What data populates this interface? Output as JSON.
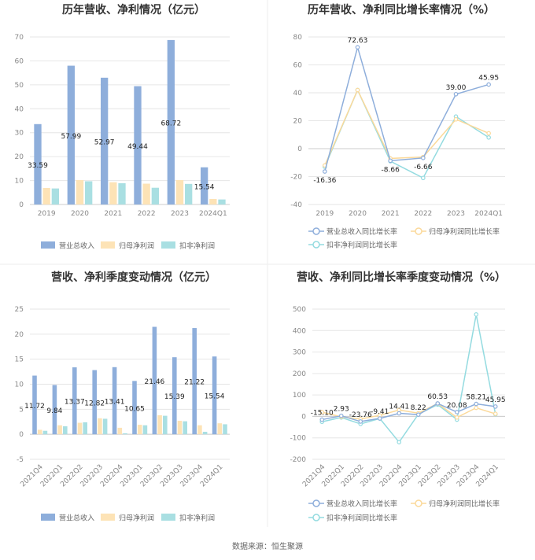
{
  "source": "数据来源：恒生聚源",
  "colors": {
    "revenue_bar": "#8eaedb",
    "netprofit_bar": "#fde3b6",
    "deducted_bar": "#a9dfe2",
    "revenue_line": "#8eaedb",
    "netprofit_line": "#fbd99a",
    "deducted_line": "#94dbe0",
    "grid": "#e6e6e6",
    "axis": "#cccccc"
  },
  "chart_data": [
    {
      "type": "bar",
      "title": "历年营收、净利情况（亿元）",
      "categories": [
        "2019",
        "2020",
        "2021",
        "2022",
        "2023",
        "2024Q1"
      ],
      "ylim": [
        0,
        70
      ],
      "yticks": [
        0,
        10,
        20,
        30,
        40,
        50,
        60,
        70
      ],
      "series": [
        {
          "name": "营业总收入",
          "values": [
            33.59,
            57.99,
            52.97,
            49.44,
            68.72,
            15.54
          ],
          "labels": [
            "33.59",
            "57.99",
            "52.97",
            "49.44",
            "68.72",
            "15.54"
          ]
        },
        {
          "name": "归母净利润",
          "values": [
            6.9,
            10.2,
            9.3,
            8.7,
            10.2,
            2.3
          ]
        },
        {
          "name": "扣非净利润",
          "values": [
            6.7,
            9.7,
            8.9,
            7.0,
            8.6,
            2.1
          ]
        }
      ],
      "grid": true,
      "legend": "bottom"
    },
    {
      "type": "line",
      "title": "历年营收、净利同比增长率情况（%）",
      "categories": [
        "2019",
        "2020",
        "2021",
        "2022",
        "2023",
        "2024Q1"
      ],
      "ylim": [
        -40,
        80
      ],
      "yticks": [
        -40,
        -20,
        0,
        20,
        40,
        60,
        80
      ],
      "series": [
        {
          "name": "营业总收入同比增长率",
          "values": [
            -16.36,
            72.63,
            -8.66,
            -6.66,
            39.0,
            45.95
          ],
          "labels": [
            "-16.36",
            "72.63",
            "-8.66",
            "-6.66",
            "39.00",
            "45.95"
          ]
        },
        {
          "name": "归母净利润同比增长率",
          "values": [
            -12,
            42,
            -7,
            -6,
            21,
            11
          ]
        },
        {
          "name": "扣非净利润同比增长率",
          "values": [
            -13,
            42,
            -9,
            -21,
            23,
            8
          ]
        }
      ],
      "grid": true,
      "legend": "bottom"
    },
    {
      "type": "bar",
      "title": "营收、净利季度变动情况（亿元）",
      "categories": [
        "2021Q4",
        "2022Q1",
        "2022Q2",
        "2022Q3",
        "2022Q4",
        "2023Q1",
        "2023Q2",
        "2023Q3",
        "2023Q4",
        "2024Q1"
      ],
      "ylim": [
        -5,
        25
      ],
      "yticks": [
        -5,
        0,
        5,
        10,
        15,
        20,
        25
      ],
      "series": [
        {
          "name": "营业总收入",
          "values": [
            11.72,
            9.84,
            13.37,
            12.82,
            13.41,
            10.65,
            21.46,
            15.39,
            21.22,
            15.54
          ],
          "labels": [
            "11.72",
            "9.84",
            "13.37",
            "12.82",
            "13.41",
            "10.65",
            "21.46",
            "15.39",
            "21.22",
            "15.54"
          ]
        },
        {
          "name": "归母净利润",
          "values": [
            0.9,
            1.8,
            2.3,
            3.2,
            1.3,
            1.9,
            3.8,
            2.7,
            1.8,
            2.2
          ]
        },
        {
          "name": "扣非净利润",
          "values": [
            0.7,
            1.6,
            2.4,
            3.1,
            0.2,
            1.8,
            3.7,
            2.6,
            0.5,
            2.0
          ]
        }
      ],
      "grid": true,
      "legend": "bottom"
    },
    {
      "type": "line",
      "title": "营收、净利同比增长率季度变动情况（%）",
      "categories": [
        "2021Q4",
        "2022Q1",
        "2022Q2",
        "2022Q3",
        "2022Q4",
        "2023Q1",
        "2023Q2",
        "2023Q3",
        "2023Q4",
        "2024Q1"
      ],
      "ylim": [
        -200,
        500
      ],
      "yticks": [
        -200,
        -100,
        0,
        100,
        200,
        300,
        400,
        500
      ],
      "series": [
        {
          "name": "营业总收入同比增长率",
          "values": [
            -15.1,
            2.93,
            -23.76,
            -9.41,
            14.41,
            8.22,
            60.53,
            20.08,
            58.21,
            45.95
          ],
          "labels": [
            "-15.10",
            "2.93",
            "-23.76",
            "-9.41",
            "14.41",
            "8.22",
            "60.53",
            "20.08",
            "58.21",
            "45.95"
          ]
        },
        {
          "name": "归母净利润同比增长率",
          "values": [
            20,
            -2,
            -12,
            5,
            30,
            15,
            60,
            -5,
            40,
            12
          ]
        },
        {
          "name": "扣非净利润同比增长率",
          "values": [
            -25,
            -5,
            -35,
            -10,
            -120,
            10,
            55,
            -15,
            475,
            10
          ]
        }
      ],
      "grid": true,
      "legend": "bottom"
    }
  ]
}
